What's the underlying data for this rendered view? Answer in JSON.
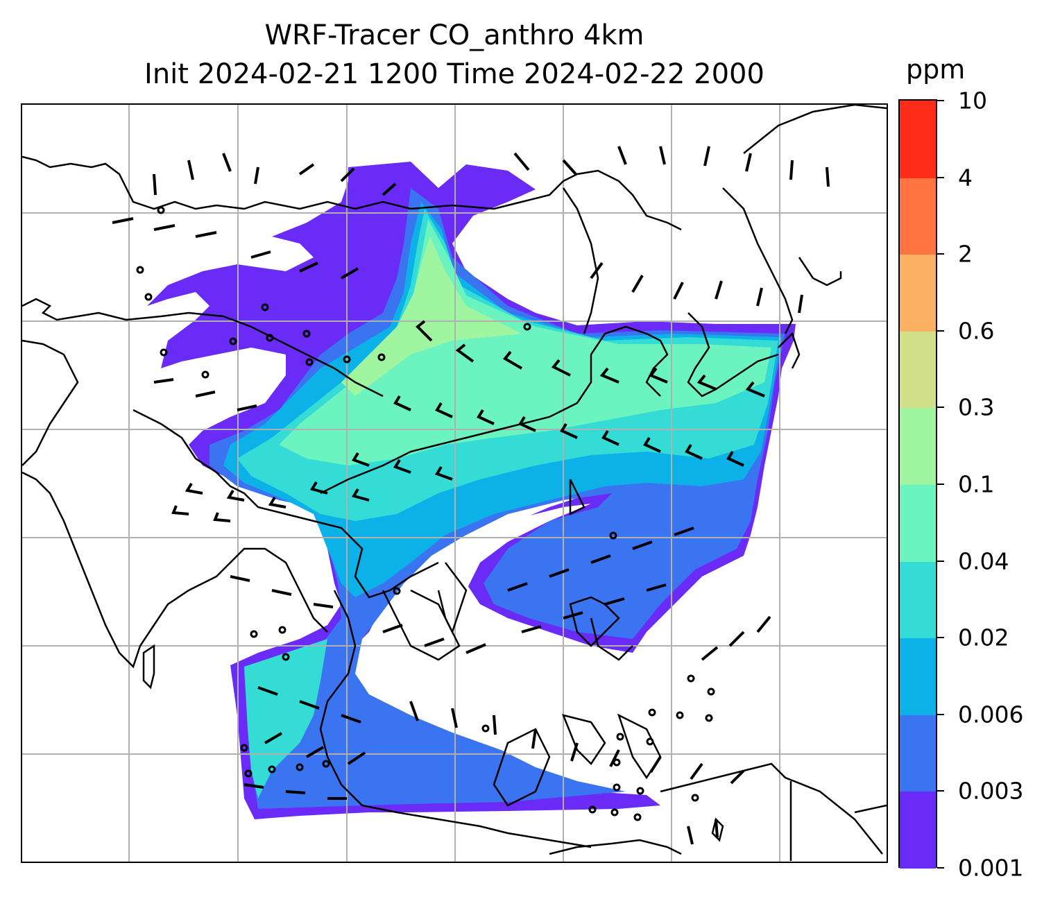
{
  "title": {
    "line1": "WRF-Tracer CO_anthro 4km",
    "line2": "Init 2024-02-21 1200 Time 2024-02-22 2000"
  },
  "colorbar": {
    "unit": "ppm",
    "ticks": [
      "0.001",
      "0.003",
      "0.006",
      "0.02",
      "0.04",
      "0.1",
      "0.3",
      "0.6",
      "2",
      "4",
      "10"
    ],
    "colors": [
      "#6a2bf6",
      "#3a74f0",
      "#0cb1e8",
      "#35dcd6",
      "#6cf4c0",
      "#a0f6a0",
      "#d2e08a",
      "#fcb064",
      "#ff7440",
      "#ff2c1a"
    ]
  },
  "map": {
    "gridlines": true,
    "grid_color": "#b0b0b0",
    "coastline_color": "#000000",
    "wind_barb_color": "#000000"
  }
}
